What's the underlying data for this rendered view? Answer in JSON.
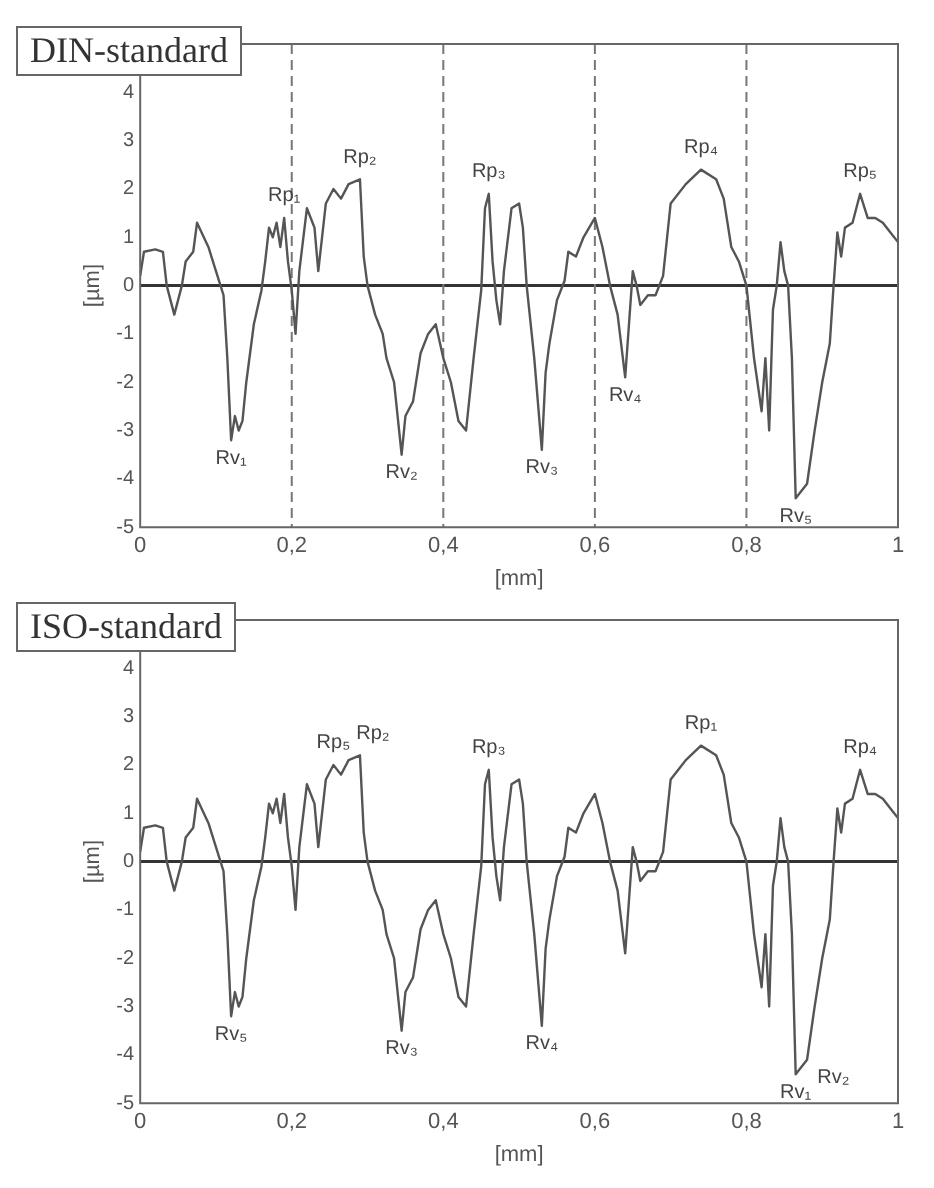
{
  "chart_data": [
    {
      "type": "line",
      "title": "DIN-standard",
      "xlabel": "[mm]",
      "ylabel": "[µm]",
      "x": [
        0,
        0.005,
        0.02,
        0.03,
        0.035,
        0.045,
        0.055,
        0.06,
        0.07,
        0.075,
        0.09,
        0.1,
        0.11,
        0.115,
        0.12,
        0.125,
        0.13,
        0.135,
        0.14,
        0.15,
        0.16,
        0.165,
        0.17,
        0.175,
        0.18,
        0.185,
        0.19,
        0.195,
        0.2,
        0.205,
        0.21,
        0.22,
        0.23,
        0.235,
        0.24,
        0.245,
        0.255,
        0.265,
        0.275,
        0.29,
        0.295,
        0.3,
        0.31,
        0.32,
        0.325,
        0.335,
        0.345,
        0.35,
        0.36,
        0.37,
        0.38,
        0.39,
        0.4,
        0.41,
        0.42,
        0.43,
        0.44,
        0.45,
        0.455,
        0.46,
        0.465,
        0.47,
        0.475,
        0.48,
        0.49,
        0.5,
        0.505,
        0.51,
        0.52,
        0.53,
        0.535,
        0.54,
        0.55,
        0.56,
        0.565,
        0.575,
        0.585,
        0.6,
        0.61,
        0.62,
        0.63,
        0.64,
        0.645,
        0.65,
        0.655,
        0.66,
        0.67,
        0.68,
        0.685,
        0.69,
        0.7,
        0.72,
        0.74,
        0.76,
        0.77,
        0.78,
        0.79,
        0.8,
        0.81,
        0.82,
        0.825,
        0.83,
        0.835,
        0.84,
        0.845,
        0.85,
        0.855,
        0.86,
        0.865,
        0.88,
        0.89,
        0.9,
        0.91,
        0.915,
        0.92,
        0.925,
        0.93,
        0.94,
        0.95,
        0.96,
        0.97,
        0.98,
        0.99,
        1
      ],
      "series": [
        {
          "color": "#555555",
          "values": [
            0.2,
            0.7,
            0.75,
            0.7,
            0,
            -0.6,
            0,
            0.5,
            0.7,
            1.3,
            0.8,
            0.3,
            -0.2,
            -1.5,
            -3.2,
            -2.7,
            -3,
            -2.8,
            -2,
            -0.8,
            -0.1,
            0.5,
            1.2,
            1,
            1.3,
            0.8,
            1.4,
            0.5,
            -0.1,
            -1,
            0.3,
            1.6,
            1.2,
            0.3,
            1,
            1.7,
            2,
            1.8,
            2.1,
            2.2,
            0.6,
            0,
            -0.6,
            -1,
            -1.5,
            -2,
            -3.5,
            -2.7,
            -2.4,
            -1.4,
            -1,
            -0.8,
            -1.5,
            -2,
            -2.8,
            -3,
            -1.5,
            -0.1,
            1.6,
            1.9,
            0.5,
            -0.3,
            -0.8,
            0.3,
            1.6,
            1.7,
            1.2,
            0,
            -1.5,
            -3.4,
            -1.8,
            -1.2,
            -0.3,
            0.1,
            0.7,
            0.6,
            1,
            1.4,
            0.8,
            0,
            -0.6,
            -1.9,
            -0.8,
            0.3,
            0,
            -0.4,
            -0.2,
            -0.2,
            0,
            0.2,
            1.7,
            2.1,
            2.4,
            2.2,
            1.8,
            0.8,
            0.5,
            0,
            -1.5,
            -2.6,
            -1.5,
            -3,
            -0.5,
            0,
            0.9,
            0.3,
            0,
            -1.5,
            -4.4,
            -4.1,
            -3,
            -2,
            -1.2,
            0,
            1.1,
            0.6,
            1.2,
            1.3,
            1.9,
            1.4,
            1.4,
            1.3,
            1.1,
            0.9
          ]
        }
      ],
      "xlim": [
        0,
        1
      ],
      "xticks": [
        {
          "value": 0,
          "label": "0"
        },
        {
          "value": 0.2,
          "label": "0,2"
        },
        {
          "value": 0.4,
          "label": "0,4"
        },
        {
          "value": 0.6,
          "label": "0,6"
        },
        {
          "value": 0.8,
          "label": "0,8"
        },
        {
          "value": 1,
          "label": "1"
        }
      ],
      "ylim": [
        -5,
        5
      ],
      "yticks": [
        -5,
        -4,
        -3,
        -2,
        -1,
        0,
        1,
        2,
        3,
        4
      ],
      "ref_lines": [
        {
          "axis": "y",
          "value": 0,
          "color": "#333333"
        },
        {
          "axis": "x",
          "value": 0.2,
          "color": "#777777",
          "line_style": "dashed"
        },
        {
          "axis": "x",
          "value": 0.4,
          "color": "#777777",
          "line_style": "dashed"
        },
        {
          "axis": "x",
          "value": 0.6,
          "color": "#777777",
          "line_style": "dashed"
        },
        {
          "axis": "x",
          "value": 0.8,
          "color": "#777777",
          "line_style": "dashed"
        }
      ],
      "annotations": [
        {
          "text": "Rp₁",
          "x": 0.19,
          "y": 1.4
        },
        {
          "text": "Rp₂",
          "x": 0.29,
          "y": 2.2
        },
        {
          "text": "Rp₃",
          "x": 0.46,
          "y": 1.9
        },
        {
          "text": "Rp₄",
          "x": 0.74,
          "y": 2.4
        },
        {
          "text": "Rp₅",
          "x": 0.95,
          "y": 1.9
        },
        {
          "text": "Rv₁",
          "x": 0.12,
          "y": -3.2
        },
        {
          "text": "Rv₂",
          "x": 0.345,
          "y": -3.5
        },
        {
          "text": "Rv₃",
          "x": 0.53,
          "y": -3.4
        },
        {
          "text": "Rv₄",
          "x": 0.64,
          "y": -1.9
        },
        {
          "text": "Rv₅",
          "x": 0.865,
          "y": -4.4
        }
      ]
    },
    {
      "type": "line",
      "title": "ISO-standard",
      "xlabel": "[mm]",
      "ylabel": "[µm]",
      "x": [
        0,
        0.005,
        0.02,
        0.03,
        0.035,
        0.045,
        0.055,
        0.06,
        0.07,
        0.075,
        0.09,
        0.1,
        0.11,
        0.115,
        0.12,
        0.125,
        0.13,
        0.135,
        0.14,
        0.15,
        0.16,
        0.165,
        0.17,
        0.175,
        0.18,
        0.185,
        0.19,
        0.195,
        0.2,
        0.205,
        0.21,
        0.22,
        0.23,
        0.235,
        0.24,
        0.245,
        0.255,
        0.265,
        0.275,
        0.29,
        0.295,
        0.3,
        0.31,
        0.32,
        0.325,
        0.335,
        0.345,
        0.35,
        0.36,
        0.37,
        0.38,
        0.39,
        0.4,
        0.41,
        0.42,
        0.43,
        0.44,
        0.45,
        0.455,
        0.46,
        0.465,
        0.47,
        0.475,
        0.48,
        0.49,
        0.5,
        0.505,
        0.51,
        0.52,
        0.53,
        0.535,
        0.54,
        0.55,
        0.56,
        0.565,
        0.575,
        0.585,
        0.6,
        0.61,
        0.62,
        0.63,
        0.64,
        0.645,
        0.65,
        0.655,
        0.66,
        0.67,
        0.68,
        0.685,
        0.69,
        0.7,
        0.72,
        0.74,
        0.76,
        0.77,
        0.78,
        0.79,
        0.8,
        0.81,
        0.82,
        0.825,
        0.83,
        0.835,
        0.84,
        0.845,
        0.85,
        0.855,
        0.86,
        0.865,
        0.88,
        0.89,
        0.9,
        0.91,
        0.915,
        0.92,
        0.925,
        0.93,
        0.94,
        0.95,
        0.96,
        0.97,
        0.98,
        0.99,
        1
      ],
      "series": [
        {
          "color": "#555555",
          "values": [
            0.2,
            0.7,
            0.75,
            0.7,
            0,
            -0.6,
            0,
            0.5,
            0.7,
            1.3,
            0.8,
            0.3,
            -0.2,
            -1.5,
            -3.2,
            -2.7,
            -3,
            -2.8,
            -2,
            -0.8,
            -0.1,
            0.5,
            1.2,
            1,
            1.3,
            0.8,
            1.4,
            0.5,
            -0.1,
            -1,
            0.3,
            1.6,
            1.2,
            0.3,
            1,
            1.7,
            2,
            1.8,
            2.1,
            2.2,
            0.6,
            0,
            -0.6,
            -1,
            -1.5,
            -2,
            -3.5,
            -2.7,
            -2.4,
            -1.4,
            -1,
            -0.8,
            -1.5,
            -2,
            -2.8,
            -3,
            -1.5,
            -0.1,
            1.6,
            1.9,
            0.5,
            -0.3,
            -0.8,
            0.3,
            1.6,
            1.7,
            1.2,
            0,
            -1.5,
            -3.4,
            -1.8,
            -1.2,
            -0.3,
            0.1,
            0.7,
            0.6,
            1,
            1.4,
            0.8,
            0,
            -0.6,
            -1.9,
            -0.8,
            0.3,
            0,
            -0.4,
            -0.2,
            -0.2,
            0,
            0.2,
            1.7,
            2.1,
            2.4,
            2.2,
            1.8,
            0.8,
            0.5,
            0,
            -1.5,
            -2.6,
            -1.5,
            -3,
            -0.5,
            0,
            0.9,
            0.3,
            0,
            -1.5,
            -4.4,
            -4.1,
            -3,
            -2,
            -1.2,
            0,
            1.1,
            0.6,
            1.2,
            1.3,
            1.9,
            1.4,
            1.4,
            1.3,
            1.1,
            0.9
          ]
        }
      ],
      "xlim": [
        0,
        1
      ],
      "xticks": [
        {
          "value": 0,
          "label": "0"
        },
        {
          "value": 0.2,
          "label": "0,2"
        },
        {
          "value": 0.4,
          "label": "0,4"
        },
        {
          "value": 0.6,
          "label": "0,6"
        },
        {
          "value": 0.8,
          "label": "0,8"
        },
        {
          "value": 1,
          "label": "1"
        }
      ],
      "ylim": [
        -5,
        5
      ],
      "yticks": [
        -5,
        -4,
        -3,
        -2,
        -1,
        0,
        1,
        2,
        3,
        4
      ],
      "ref_lines": [
        {
          "axis": "y",
          "value": 0,
          "color": "#333333"
        }
      ],
      "annotations": [
        {
          "text": "Rp₅",
          "x": 0.255,
          "y": 2
        },
        {
          "text": "Rp₂",
          "x": 0.29,
          "y": 2.2
        },
        {
          "text": "Rp₃",
          "x": 0.46,
          "y": 1.9
        },
        {
          "text": "Rp₁",
          "x": 0.74,
          "y": 2.4
        },
        {
          "text": "Rp₄",
          "x": 0.95,
          "y": 1.9
        },
        {
          "text": "Rv₅",
          "x": 0.12,
          "y": -3.2
        },
        {
          "text": "Rv₃",
          "x": 0.345,
          "y": -3.5
        },
        {
          "text": "Rv₄",
          "x": 0.53,
          "y": -3.4
        },
        {
          "text": "Rv₁",
          "x": 0.865,
          "y": -4.4
        },
        {
          "text": "Rv₂",
          "x": 0.88,
          "y": -4.1
        }
      ]
    }
  ]
}
